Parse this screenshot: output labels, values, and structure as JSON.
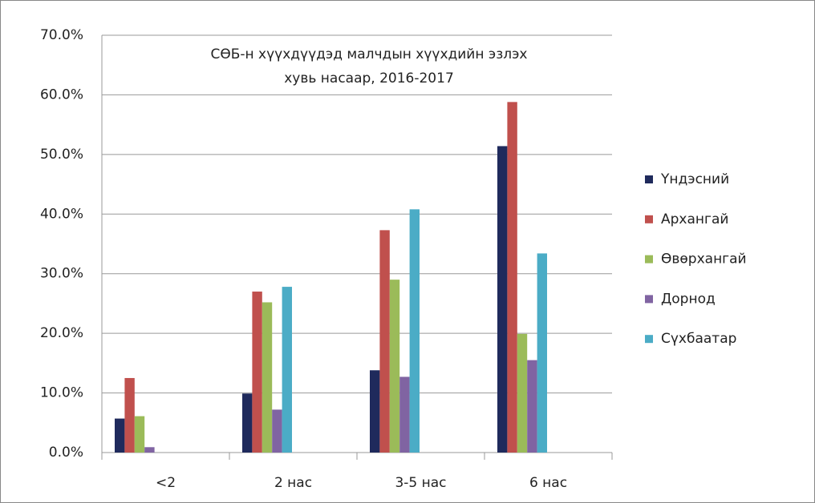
{
  "chart_data": {
    "type": "bar",
    "title": [
      "СӨБ-н хүүхдүүдэд малчдын хүүхдийн эзлэх",
      "хувь насаар, 2016-2017"
    ],
    "categories": [
      "<2",
      "2 нас",
      "3-5 нас",
      "6 нас"
    ],
    "series": [
      {
        "name": "Үндэсний",
        "color": "#1f2a5c",
        "values": [
          5.7,
          9.9,
          13.8,
          51.4
        ]
      },
      {
        "name": "Архангай",
        "color": "#c0504d",
        "values": [
          12.5,
          27.0,
          37.3,
          58.8
        ]
      },
      {
        "name": "Өвөрхангай",
        "color": "#9bbb59",
        "values": [
          6.1,
          25.2,
          29.0,
          19.9
        ]
      },
      {
        "name": "Дорнод",
        "color": "#8064a2",
        "values": [
          0.9,
          7.2,
          12.7,
          15.5
        ]
      },
      {
        "name": "Сүхбаатар",
        "color": "#4bacc6",
        "values": [
          0,
          27.8,
          40.8,
          33.4
        ]
      }
    ],
    "ylim": [
      0,
      70
    ],
    "yticks": [
      {
        "value": 0,
        "label": "0.0%"
      },
      {
        "value": 10,
        "label": "10.0%"
      },
      {
        "value": 20,
        "label": "20.0%"
      },
      {
        "value": 30,
        "label": "30.0%"
      },
      {
        "value": 40,
        "label": "40.0%"
      },
      {
        "value": 50,
        "label": "50.0%"
      },
      {
        "value": 60,
        "label": "60.0%"
      },
      {
        "value": 70,
        "label": "70.0%"
      }
    ],
    "grid": true,
    "legend": "right"
  }
}
